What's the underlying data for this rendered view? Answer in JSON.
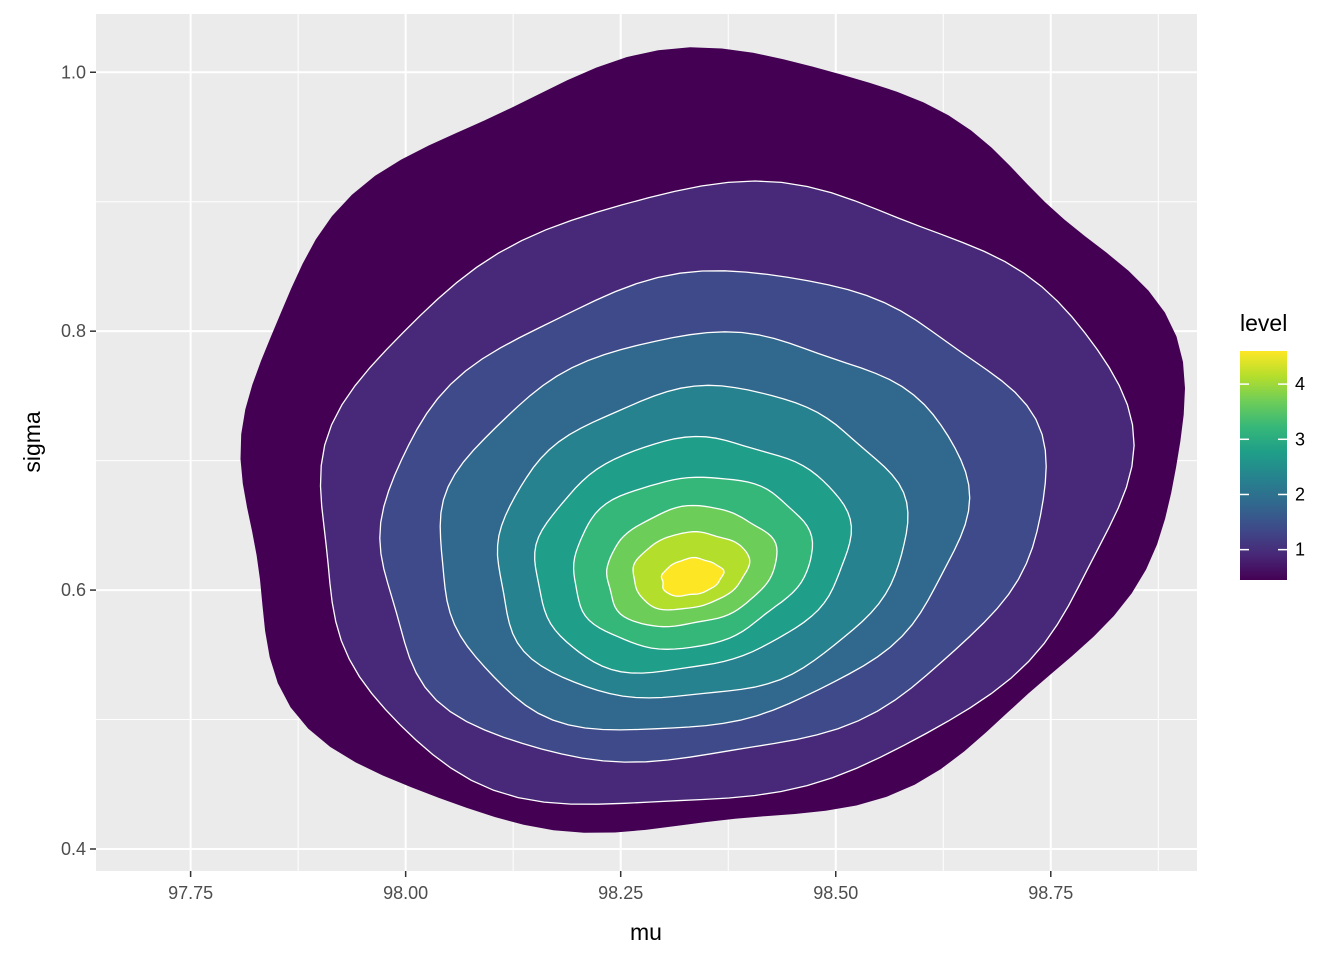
{
  "chart_data": {
    "type": "filled-contour",
    "xlabel": "mu",
    "ylabel": "sigma",
    "x_ticks": [
      97.75,
      98.0,
      98.25,
      98.5,
      98.75
    ],
    "x_tick_labels": [
      "97.75",
      "98.00",
      "98.25",
      "98.50",
      "98.75"
    ],
    "y_ticks": [
      0.4,
      0.6,
      0.8,
      1.0
    ],
    "y_tick_labels": [
      "0.4",
      "0.6",
      "0.8",
      "1.0"
    ],
    "xlim": [
      97.64,
      98.92
    ],
    "ylim": [
      0.383,
      1.045
    ],
    "grid": true,
    "legend": {
      "title": "level",
      "position": "right",
      "ticks": [
        1,
        2,
        3,
        4
      ],
      "tick_labels": [
        "1",
        "2",
        "3",
        "4"
      ],
      "range": [
        0.45,
        4.6
      ],
      "colors": [
        "#440154",
        "#482878",
        "#3E4A89",
        "#31688E",
        "#26828E",
        "#1F9E89",
        "#35B779",
        "#6DCD59",
        "#B4DE2C",
        "#FDE725"
      ]
    },
    "peak": {
      "mu": 98.33,
      "sigma": 0.61,
      "level": 4.6
    },
    "levels": [
      {
        "level": 0.5,
        "color": "#440154",
        "center": [
          98.34,
          0.708
        ],
        "rx": 0.55,
        "ry": 0.298,
        "tilt": 0.18,
        "bumps": [
          0.03,
          0.5,
          0.02,
          1.4,
          0.015,
          2.6
        ]
      },
      {
        "level": 1.0,
        "color": "#482878",
        "center": [
          98.36,
          0.672
        ],
        "rx": 0.475,
        "ry": 0.235,
        "tilt": 0.22,
        "bumps": [
          0.02,
          1.0,
          0.015,
          2.0,
          0.01,
          0.3
        ]
      },
      {
        "level": 1.5,
        "color": "#3E4A89",
        "center": [
          98.35,
          0.655
        ],
        "rx": 0.39,
        "ry": 0.185,
        "tilt": 0.2,
        "bumps": [
          0.02,
          0.7,
          0.015,
          1.8,
          0.01,
          2.9
        ]
      },
      {
        "level": 2.0,
        "color": "#31688E",
        "center": [
          98.34,
          0.645
        ],
        "rx": 0.31,
        "ry": 0.15,
        "tilt": 0.22,
        "bumps": [
          0.02,
          1.2,
          0.012,
          2.4,
          0.01,
          0.1
        ]
      },
      {
        "level": 2.5,
        "color": "#26828E",
        "center": [
          98.34,
          0.635
        ],
        "rx": 0.24,
        "ry": 0.118,
        "tilt": 0.2,
        "bumps": [
          0.02,
          0.4,
          0.015,
          1.5,
          0.01,
          2.2
        ]
      },
      {
        "level": 3.0,
        "color": "#1F9E89",
        "center": [
          98.33,
          0.627
        ],
        "rx": 0.185,
        "ry": 0.088,
        "tilt": 0.22,
        "bumps": [
          0.025,
          0.9,
          0.015,
          2.7,
          0.01,
          1.1
        ]
      },
      {
        "level": 3.5,
        "color": "#35B779",
        "center": [
          98.33,
          0.622
        ],
        "rx": 0.14,
        "ry": 0.065,
        "tilt": 0.2,
        "bumps": [
          0.025,
          1.6,
          0.015,
          0.2,
          0.01,
          2.3
        ]
      },
      {
        "level": 4.0,
        "color": "#6DCD59",
        "center": [
          98.33,
          0.618
        ],
        "rx": 0.1,
        "ry": 0.045,
        "tilt": 0.22,
        "bumps": [
          0.03,
          0.6,
          0.02,
          1.9,
          0.01,
          2.8
        ]
      },
      {
        "level": 4.5,
        "color": "#B4DE2C",
        "center": [
          98.33,
          0.615
        ],
        "rx": 0.068,
        "ry": 0.029,
        "tilt": 0.2,
        "bumps": [
          0.03,
          1.3,
          0.02,
          2.5,
          0.01,
          0.5
        ]
      },
      {
        "level": 4.6,
        "color": "#FDE725",
        "center": [
          98.332,
          0.61
        ],
        "rx": 0.036,
        "ry": 0.014,
        "tilt": 0.18,
        "bumps": [
          0.04,
          0.8,
          0.03,
          2.1,
          0.02,
          1.5
        ]
      }
    ]
  }
}
